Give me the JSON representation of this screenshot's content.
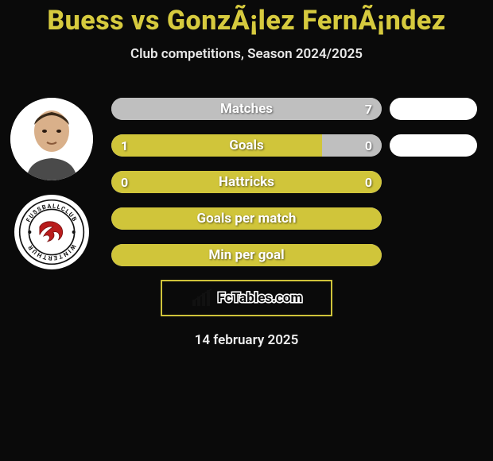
{
  "header": {
    "title": "Buess vs GonzÃ¡lez FernÃ¡ndez",
    "subtitle": "Club competitions, Season 2024/2025",
    "title_color": "#d6ca3e",
    "subtitle_color": "#e8e8e8"
  },
  "bars": [
    {
      "label": "Matches",
      "left_value": "",
      "right_value": "7",
      "left_width_pct": 0,
      "right_width_pct": 100,
      "left_color": "#cccccc",
      "right_color": "#bfbfbf"
    },
    {
      "label": "Goals",
      "left_value": "1",
      "right_value": "0",
      "left_width_pct": 78,
      "right_width_pct": 22,
      "left_color": "#d0c53a",
      "right_color": "#bfbfbf"
    },
    {
      "label": "Hattricks",
      "left_value": "0",
      "right_value": "0",
      "left_width_pct": 0,
      "right_width_pct": 0,
      "full_color": "#d0c53a"
    },
    {
      "label": "Goals per match",
      "left_value": "",
      "right_value": "",
      "left_width_pct": 0,
      "right_width_pct": 0,
      "full_color": "#d0c53a"
    },
    {
      "label": "Min per goal",
      "left_value": "",
      "right_value": "",
      "left_width_pct": 0,
      "right_width_pct": 0,
      "full_color": "#d0c53a"
    }
  ],
  "pills_count": 2,
  "pill_color": "#ffffff",
  "club": {
    "ring_text": "FUSSBALLCLUB  WINTERTHUR"
  },
  "footer": {
    "brand": "FcTables.com",
    "date": "14 february 2025",
    "box_border_color": "#cfc33a"
  },
  "palette": {
    "bg": "#0a0a0a",
    "bar_track": "#cfcfcf",
    "accent": "#d0c53a"
  }
}
